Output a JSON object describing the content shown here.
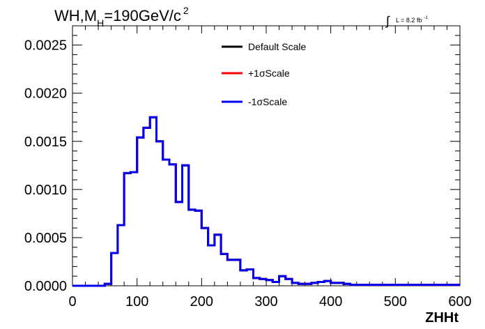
{
  "title_main": "WH,M",
  "title_sub": "H",
  "title_rest": "=190GeV/c",
  "title_sup": "2",
  "lumi": {
    "symbol": "∫",
    "text": "L = 8.2 fb",
    "sup": "-1"
  },
  "chart_data": {
    "type": "line",
    "style": "step-histogram",
    "xlabel": "ZHHt",
    "ylabel": "",
    "xlim": [
      0,
      600
    ],
    "ylim": [
      0,
      0.0027
    ],
    "x_ticks": [
      "0",
      "100",
      "200",
      "300",
      "400",
      "500",
      "600"
    ],
    "x_tick_values": [
      0,
      100,
      200,
      300,
      400,
      500,
      600
    ],
    "y_ticks": [
      "0.0000",
      "0.0005",
      "0.0010",
      "0.0015",
      "0.0020",
      "0.0025"
    ],
    "y_tick_values": [
      0,
      0.0005,
      0.001,
      0.0015,
      0.002,
      0.0025
    ],
    "bin_width": 10,
    "bin_edges_start": 0,
    "grid": false,
    "legend_position": "top-center",
    "series": [
      {
        "name": "Default Scale",
        "color": "#000000",
        "values": [
          0,
          0,
          0,
          0,
          0,
          2e-05,
          0.00034,
          0.00063,
          0.00117,
          0.00118,
          0.00154,
          0.00164,
          0.00175,
          0.0015,
          0.00131,
          0.00126,
          0.00087,
          0.00125,
          0.00079,
          0.00078,
          0.0006,
          0.00042,
          0.00053,
          0.00033,
          0.00027,
          0.00027,
          0.00016,
          0.00017,
          8e-05,
          7e-05,
          6e-05,
          4e-05,
          0.0001,
          7e-05,
          3e-05,
          2e-05,
          2e-05,
          3e-05,
          4e-05,
          5e-05,
          3e-05,
          3e-05,
          2e-05,
          1e-05,
          1e-05,
          1e-05,
          1e-05,
          1e-05,
          1e-05,
          1e-05,
          1e-05,
          1e-05,
          1e-05,
          1e-05,
          1e-05,
          1e-05,
          1e-05,
          1e-05,
          1e-05,
          1e-05
        ]
      },
      {
        "name": "+1σScale",
        "color": "#ff0000",
        "values": [
          0,
          0,
          0,
          0,
          0,
          2e-05,
          0.00034,
          0.00063,
          0.00117,
          0.00118,
          0.00154,
          0.00164,
          0.00175,
          0.0015,
          0.00131,
          0.00126,
          0.00087,
          0.00125,
          0.00079,
          0.00078,
          0.0006,
          0.00042,
          0.00053,
          0.00033,
          0.00027,
          0.00027,
          0.00016,
          0.00017,
          8e-05,
          7e-05,
          6e-05,
          4e-05,
          0.0001,
          7e-05,
          3e-05,
          2e-05,
          2e-05,
          3e-05,
          4e-05,
          5e-05,
          3e-05,
          3e-05,
          2e-05,
          1e-05,
          1e-05,
          1e-05,
          1e-05,
          1e-05,
          1e-05,
          1e-05,
          1e-05,
          1e-05,
          1e-05,
          1e-05,
          1e-05,
          1e-05,
          1e-05,
          1e-05,
          1e-05,
          1e-05
        ]
      },
      {
        "name": "-1σScale",
        "color": "#0000ee",
        "values": [
          0,
          0,
          0,
          0,
          0,
          2e-05,
          0.00034,
          0.00063,
          0.00117,
          0.00118,
          0.00154,
          0.00164,
          0.00175,
          0.0015,
          0.00131,
          0.00126,
          0.00087,
          0.00125,
          0.00079,
          0.00078,
          0.0006,
          0.00042,
          0.00053,
          0.00033,
          0.00027,
          0.00027,
          0.00016,
          0.00017,
          8e-05,
          7e-05,
          6e-05,
          4e-05,
          0.0001,
          7e-05,
          3e-05,
          2e-05,
          2e-05,
          3e-05,
          4e-05,
          5e-05,
          3e-05,
          3e-05,
          2e-05,
          1e-05,
          1e-05,
          1e-05,
          1e-05,
          1e-05,
          1e-05,
          1e-05,
          1e-05,
          1e-05,
          1e-05,
          1e-05,
          1e-05,
          1e-05,
          1e-05,
          1e-05,
          1e-05,
          1e-05
        ]
      }
    ]
  }
}
